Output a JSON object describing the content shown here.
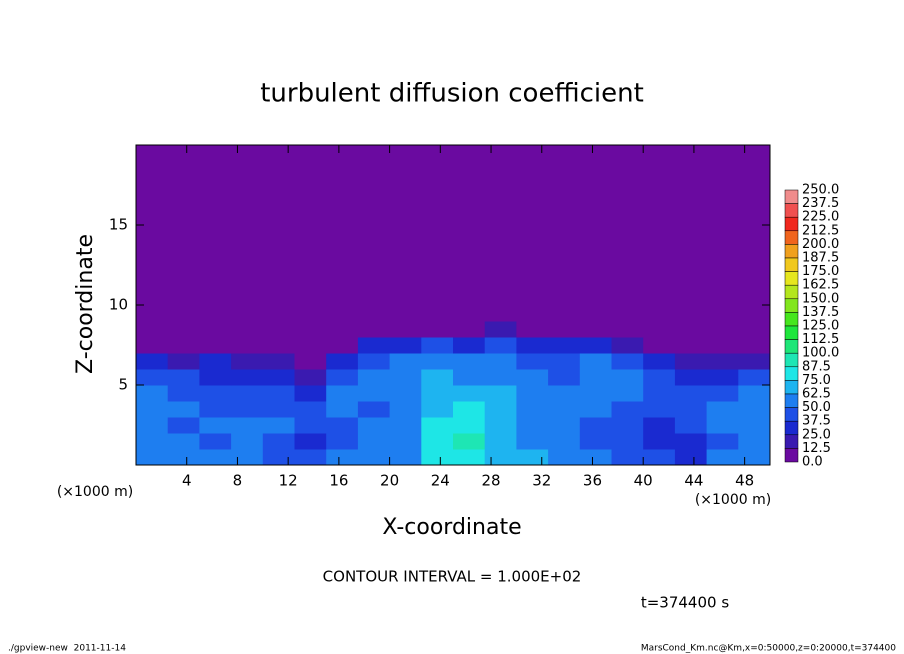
{
  "chart_data": {
    "type": "heatmap",
    "title": "turbulent diffusion coefficient",
    "xlabel": "X-coordinate",
    "ylabel": "Z-coordinate",
    "xunit": "(×1000 m)",
    "yunit": "(×1000 m)",
    "xlim": [
      0,
      50
    ],
    "ylim": [
      0,
      20
    ],
    "xticks": [
      4,
      8,
      12,
      16,
      20,
      24,
      28,
      32,
      36,
      40,
      44,
      48
    ],
    "yticks": [
      5,
      10,
      15
    ],
    "x_edges": [
      0,
      2.5,
      5,
      7.5,
      10,
      12.5,
      15,
      17.5,
      20,
      22.5,
      25,
      27.5,
      30,
      32.5,
      35,
      37.5,
      40,
      42.5,
      45,
      47.5,
      50
    ],
    "z_edges": [
      0,
      1,
      2,
      3,
      4,
      5,
      6,
      7,
      8,
      9,
      10,
      20
    ],
    "values": [
      [
        60,
        55,
        50,
        55,
        45,
        40,
        50,
        55,
        60,
        75,
        85,
        70,
        65,
        55,
        50,
        45,
        40,
        35,
        50,
        60
      ],
      [
        55,
        50,
        45,
        60,
        45,
        35,
        45,
        50,
        55,
        80,
        90,
        70,
        60,
        50,
        45,
        40,
        30,
        35,
        45,
        55
      ],
      [
        60,
        45,
        50,
        55,
        50,
        40,
        40,
        55,
        60,
        75,
        85,
        65,
        60,
        55,
        45,
        40,
        35,
        40,
        50,
        55
      ],
      [
        55,
        50,
        45,
        40,
        45,
        45,
        50,
        45,
        55,
        70,
        75,
        65,
        60,
        55,
        50,
        45,
        45,
        45,
        50,
        50
      ],
      [
        50,
        45,
        40,
        45,
        40,
        30,
        55,
        50,
        60,
        70,
        70,
        65,
        55,
        50,
        55,
        50,
        45,
        40,
        45,
        50
      ],
      [
        45,
        40,
        35,
        35,
        30,
        20,
        45,
        50,
        55,
        65,
        60,
        60,
        50,
        45,
        55,
        50,
        40,
        30,
        35,
        40
      ],
      [
        25,
        20,
        25,
        20,
        15,
        10,
        35,
        45,
        50,
        55,
        50,
        55,
        45,
        40,
        50,
        45,
        30,
        15,
        15,
        20
      ],
      [
        0,
        0,
        0,
        0,
        0,
        0,
        10,
        25,
        35,
        40,
        35,
        40,
        30,
        25,
        30,
        20,
        5,
        0,
        0,
        0
      ],
      [
        0,
        0,
        0,
        0,
        0,
        0,
        0,
        0,
        5,
        10,
        5,
        15,
        0,
        0,
        0,
        0,
        0,
        0,
        0,
        0
      ],
      [
        0,
        0,
        0,
        0,
        0,
        0,
        0,
        0,
        0,
        0,
        0,
        0,
        0,
        0,
        0,
        0,
        0,
        0,
        0,
        0
      ],
      [
        0,
        0,
        0,
        0,
        0,
        0,
        0,
        0,
        0,
        0,
        0,
        0,
        0,
        0,
        0,
        0,
        0,
        0,
        0,
        0
      ]
    ],
    "levels": [
      {
        "value": 250,
        "label": "250.0"
      },
      {
        "value": 237.5,
        "label": "237.5"
      },
      {
        "value": 225,
        "label": "225.0"
      },
      {
        "value": 212.5,
        "label": "212.5"
      },
      {
        "value": 200,
        "label": "200.0"
      },
      {
        "value": 187.5,
        "label": "187.5"
      },
      {
        "value": 175,
        "label": "175.0"
      },
      {
        "value": 162.5,
        "label": "162.5"
      },
      {
        "value": 150,
        "label": "150.0"
      },
      {
        "value": 137.5,
        "label": "137.5"
      },
      {
        "value": 125,
        "label": "125.0"
      },
      {
        "value": 112.5,
        "label": "112.5"
      },
      {
        "value": 100,
        "label": "100.0"
      },
      {
        "value": 87.5,
        "label": "87.5"
      },
      {
        "value": 75,
        "label": "75.0"
      },
      {
        "value": 62.5,
        "label": "62.5"
      },
      {
        "value": 50,
        "label": "50.0"
      },
      {
        "value": 37.5,
        "label": "37.5"
      },
      {
        "value": 25,
        "label": "25.0"
      },
      {
        "value": 12.5,
        "label": "12.5"
      },
      {
        "value": 0,
        "label": "0.0"
      }
    ],
    "colors": [
      "#f08c8c",
      "#f05050",
      "#f0281e",
      "#f0641e",
      "#f0a01e",
      "#f0c81e",
      "#e6e61e",
      "#b4e61e",
      "#82e61e",
      "#46e61e",
      "#1ee63c",
      "#1ee678",
      "#1ee6b4",
      "#1ee6e6",
      "#1eb4f0",
      "#1e7ef0",
      "#1e50e6",
      "#1a2ad0",
      "#3a1ab0",
      "#6a0aa0"
    ],
    "contour_note": "CONTOUR INTERVAL = 1.000E+02",
    "time_note": "t=374400 s",
    "footer_left": "./gpview-new  2011-11-14",
    "footer_right": "MarsCond_Km.nc@Km,x=0:50000,z=0:20000,t=374400"
  }
}
